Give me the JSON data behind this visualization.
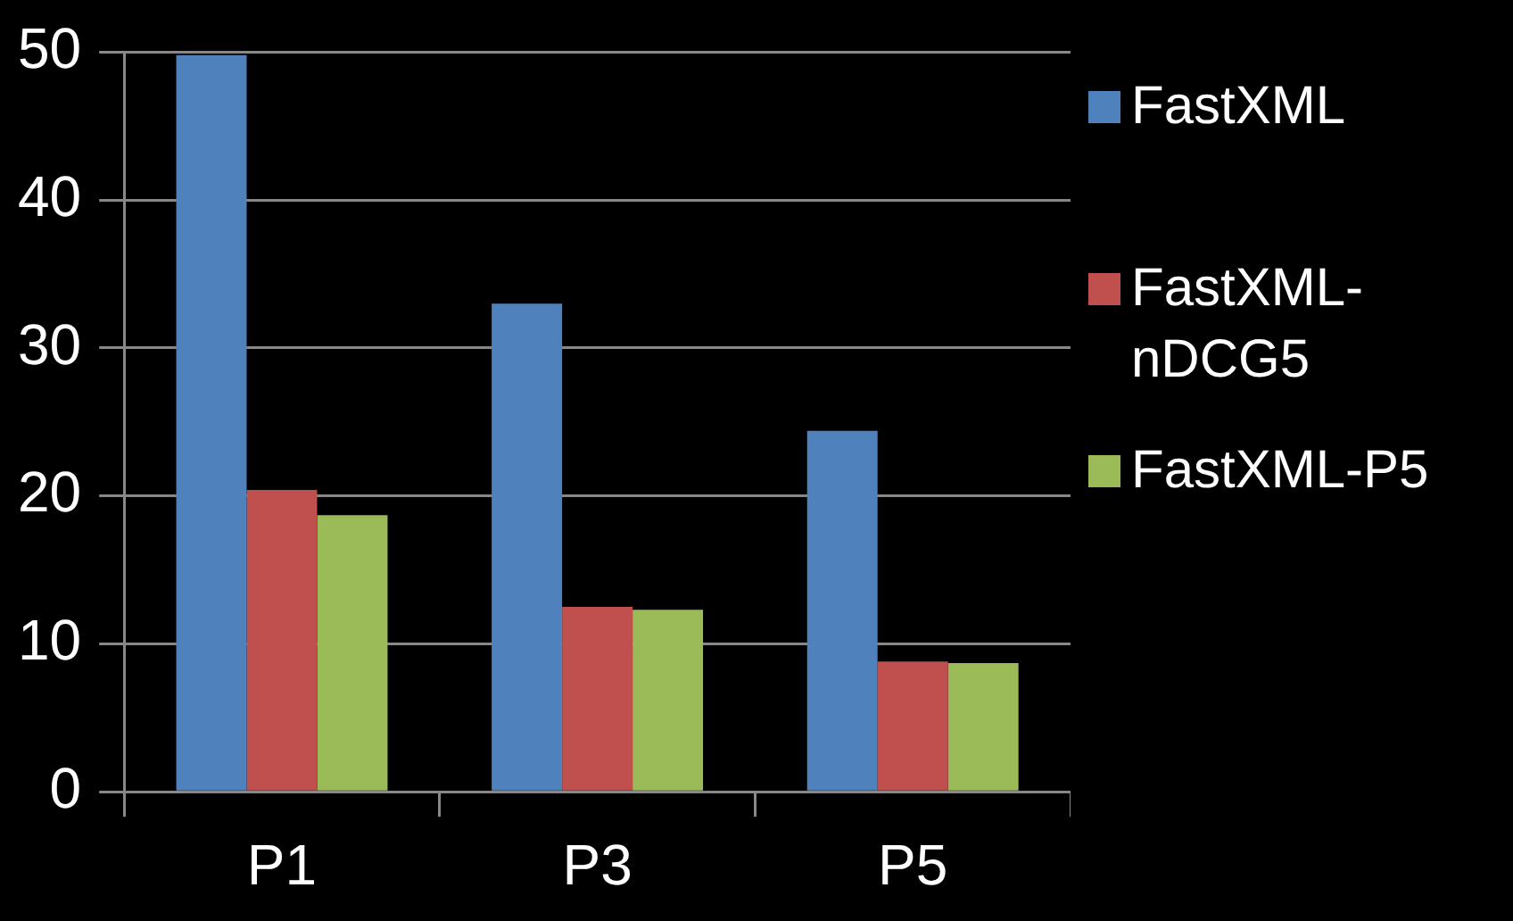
{
  "chart_data": {
    "type": "bar",
    "categories": [
      "P1",
      "P3",
      "P5"
    ],
    "series": [
      {
        "name": "FastXML",
        "color": "#4f81bd",
        "values": [
          49.8,
          33.0,
          24.4
        ]
      },
      {
        "name": "FastXML-nDCG5",
        "color": "#c0504d",
        "values": [
          20.4,
          12.5,
          8.8
        ]
      },
      {
        "name": "FastXML-P5",
        "color": "#9bbb59",
        "values": [
          18.7,
          12.3,
          8.7
        ]
      }
    ],
    "ylim": [
      0,
      50
    ],
    "yticks": [
      0,
      10,
      20,
      30,
      40,
      50
    ],
    "grid": "y",
    "legend": "right"
  }
}
